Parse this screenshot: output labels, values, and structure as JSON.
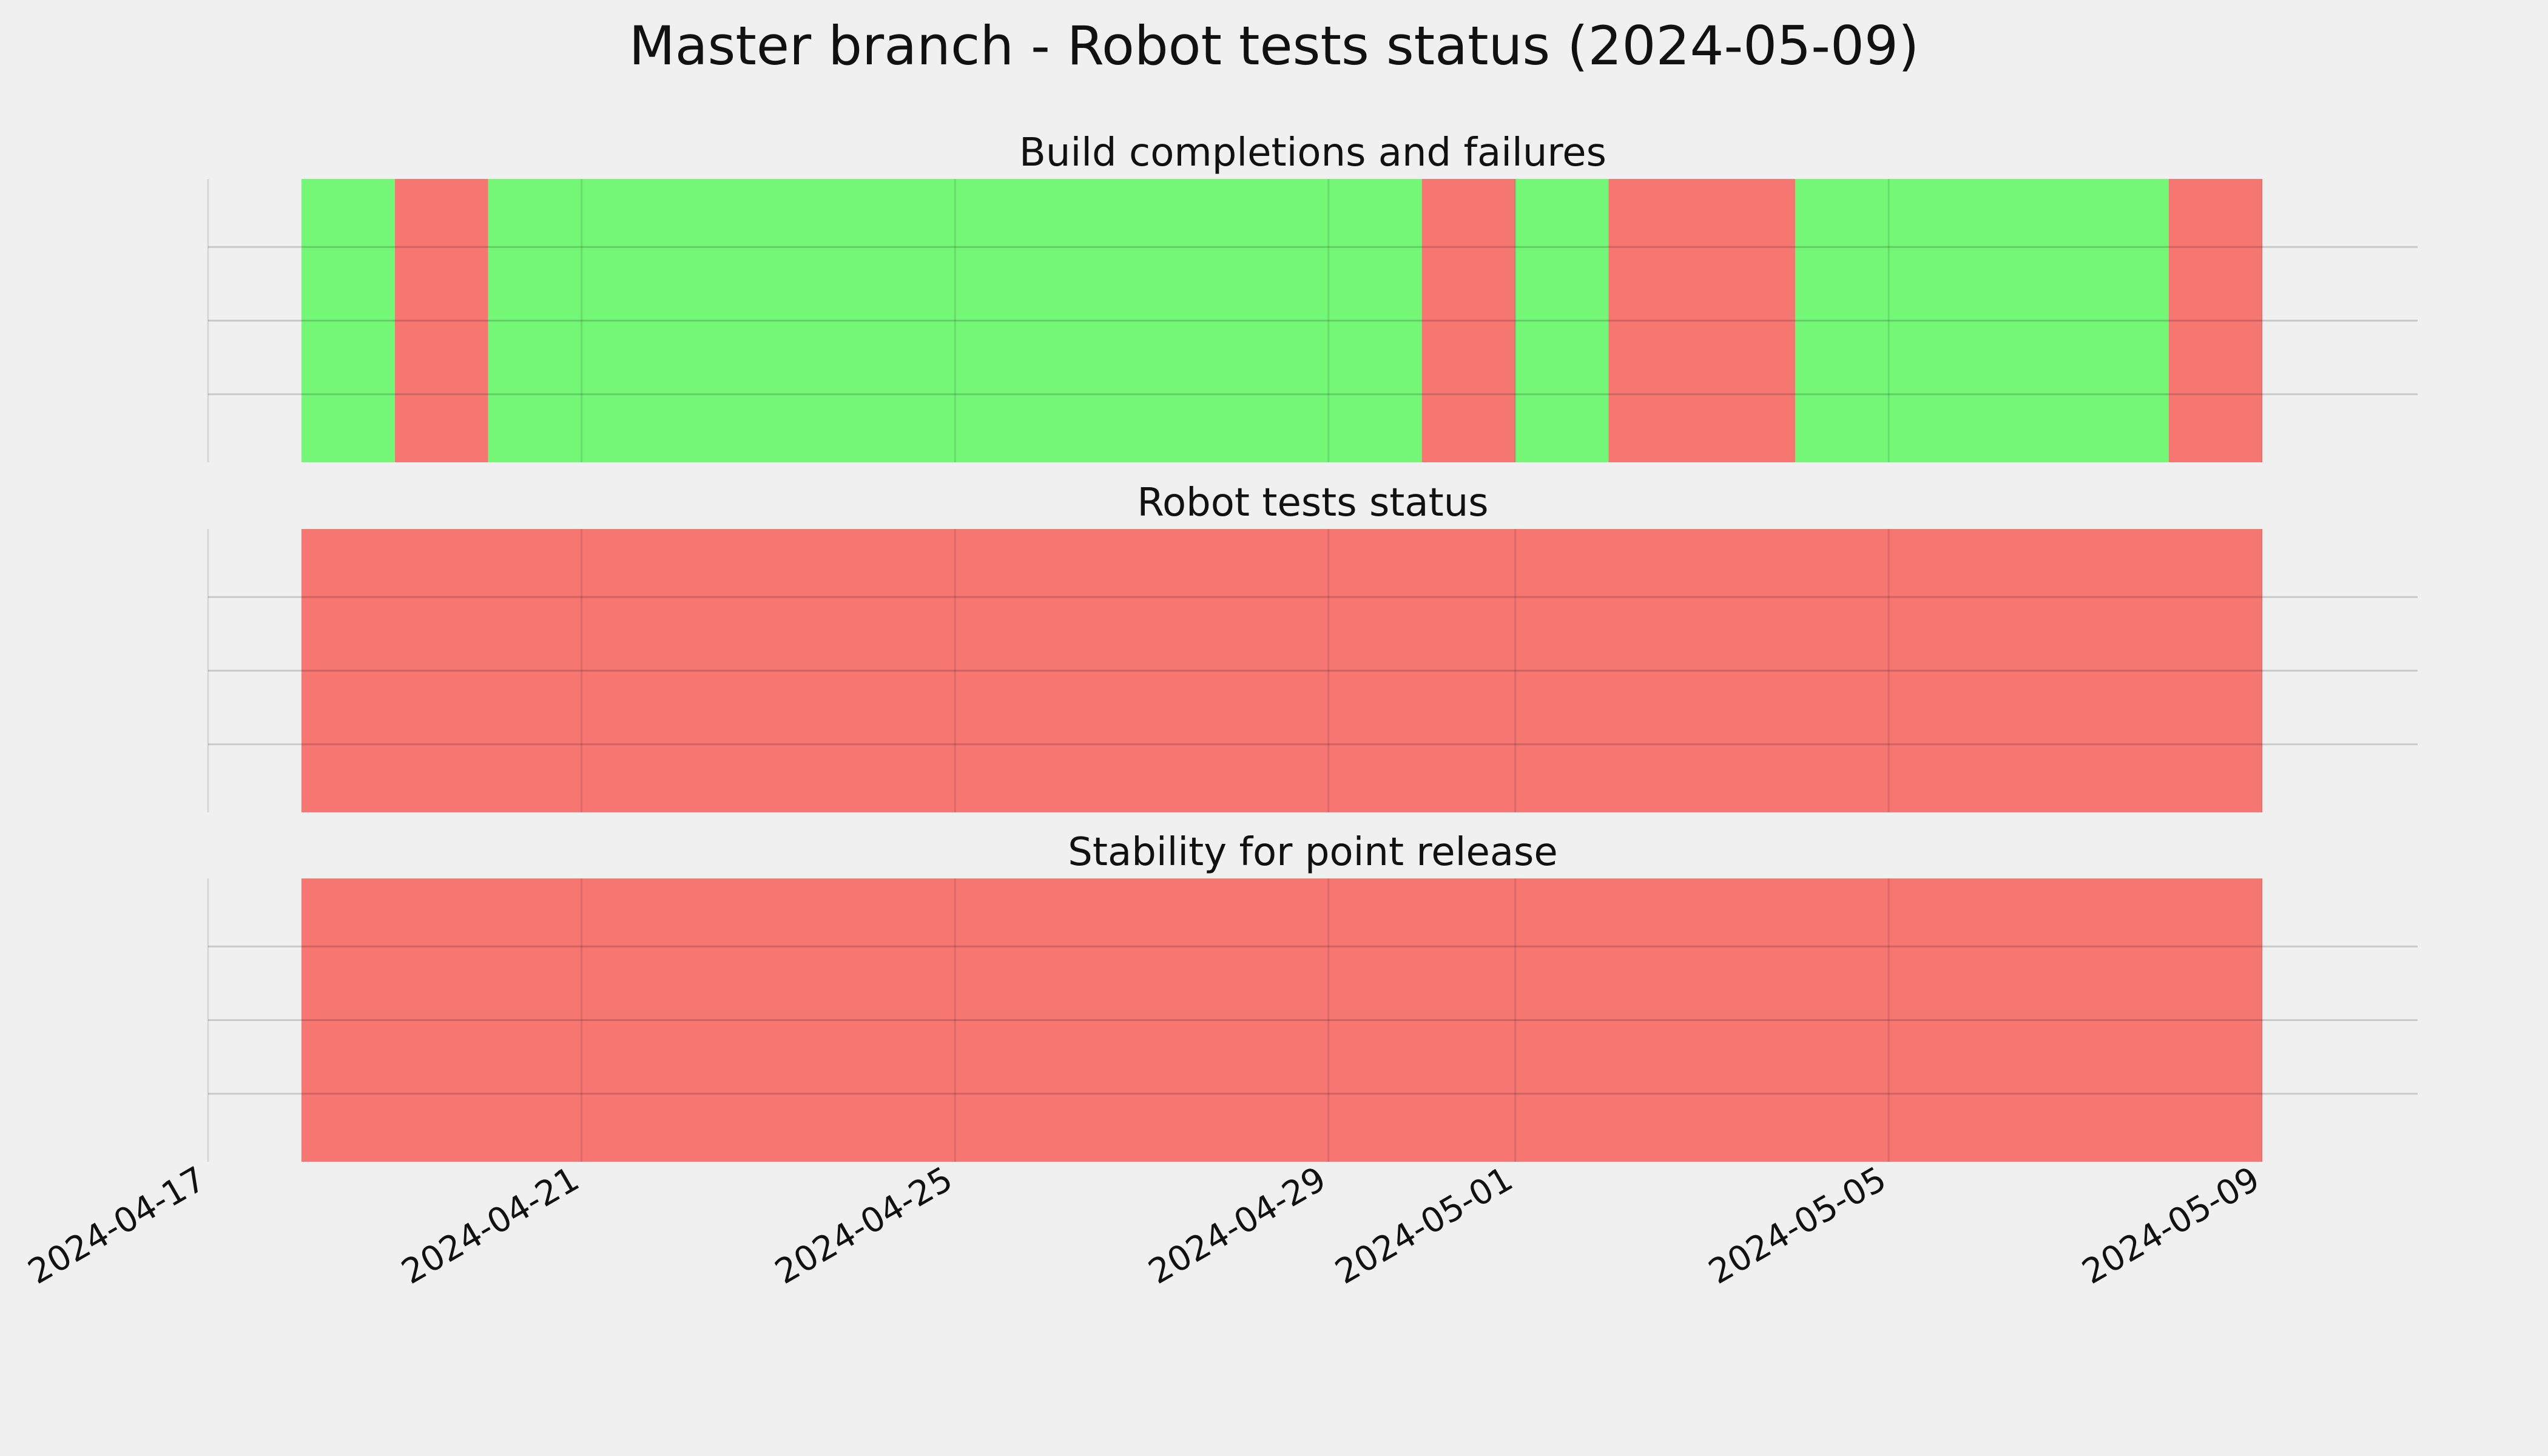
{
  "chart_data": {
    "type": "timeline",
    "title": "Master branch - Robot tests status (2024-05-09)",
    "x_axis": {
      "type": "date",
      "range": [
        "2024-04-17",
        "2024-05-11"
      ],
      "ticks": [
        "2024-04-17",
        "2024-04-21",
        "2024-04-25",
        "2024-04-29",
        "2024-05-01",
        "2024-05-05",
        "2024-05-09"
      ]
    },
    "grid": true,
    "colors": {
      "pass": "#74f777",
      "fail": "#f67672",
      "background": "#f0f0f0"
    },
    "panels": [
      {
        "title": "Build completions and failures",
        "segments": [
          {
            "start": "2024-04-18",
            "end": "2024-04-19",
            "status": "pass"
          },
          {
            "start": "2024-04-19",
            "end": "2024-04-20",
            "status": "fail"
          },
          {
            "start": "2024-04-20",
            "end": "2024-04-30",
            "status": "pass"
          },
          {
            "start": "2024-04-30",
            "end": "2024-05-01",
            "status": "fail"
          },
          {
            "start": "2024-05-01",
            "end": "2024-05-02",
            "status": "pass"
          },
          {
            "start": "2024-05-02",
            "end": "2024-05-04",
            "status": "fail"
          },
          {
            "start": "2024-05-04",
            "end": "2024-05-08",
            "status": "pass"
          },
          {
            "start": "2024-05-08",
            "end": "2024-05-09",
            "status": "fail"
          }
        ]
      },
      {
        "title": "Robot tests status",
        "segments": [
          {
            "start": "2024-04-18",
            "end": "2024-05-09",
            "status": "fail"
          }
        ]
      },
      {
        "title": "Stability for point release",
        "segments": [
          {
            "start": "2024-04-18",
            "end": "2024-05-09",
            "status": "fail"
          }
        ]
      }
    ]
  }
}
